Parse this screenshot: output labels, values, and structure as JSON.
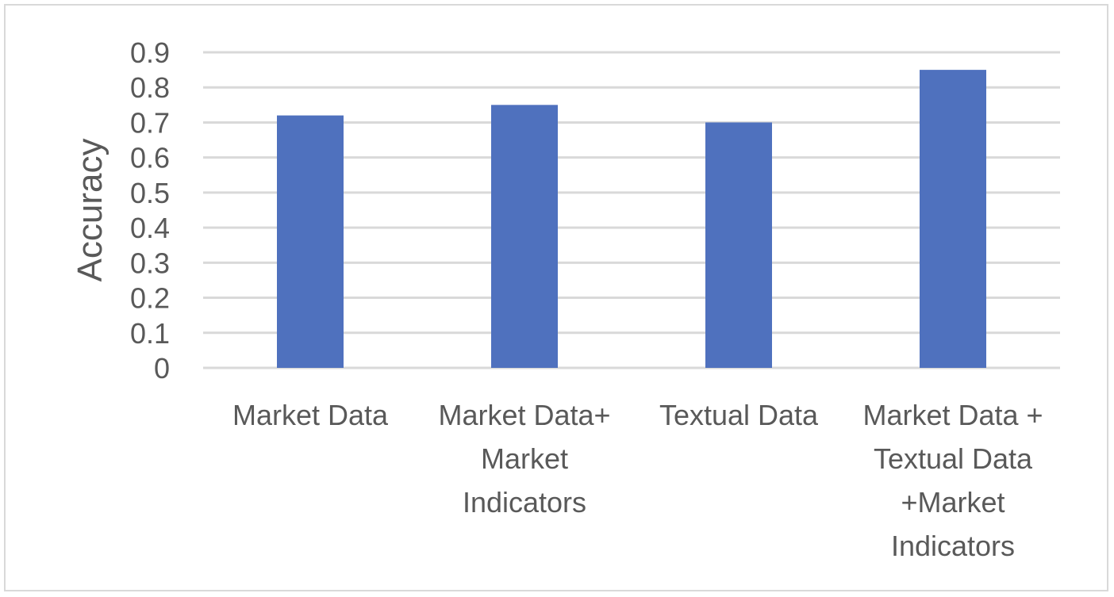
{
  "chart_data": {
    "type": "bar",
    "title": "",
    "xlabel": "",
    "ylabel": "Accuracy",
    "categories": [
      [
        "Market Data"
      ],
      [
        "Market Data+",
        "Market",
        "Indicators"
      ],
      [
        "Textual Data"
      ],
      [
        "Market Data +",
        "Textual Data",
        "+Market",
        "Indicators"
      ]
    ],
    "values": [
      0.72,
      0.75,
      0.7,
      0.85
    ],
    "ylim": [
      0,
      0.9
    ],
    "yticks": [
      "0",
      "0.1",
      "0.2",
      "0.3",
      "0.4",
      "0.5",
      "0.6",
      "0.7",
      "0.8",
      "0.9"
    ],
    "grid": true,
    "legend": "none",
    "colors": {
      "bar": "#4f71be",
      "grid": "#d9d9d9",
      "text": "#595959"
    }
  }
}
